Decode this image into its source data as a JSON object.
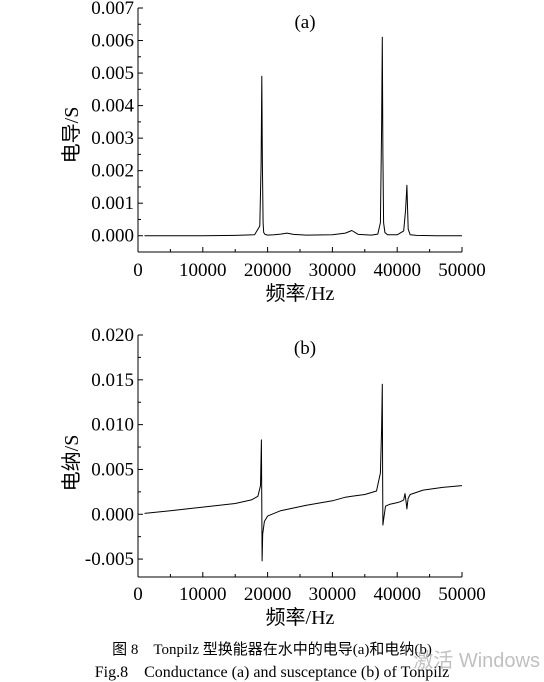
{
  "chart_data": [
    {
      "type": "line",
      "panel_label": "(a)",
      "ylabel": "电导/S",
      "xlabel": "频率/Hz",
      "xlim": [
        0,
        50000
      ],
      "ylim": [
        -0.0005,
        0.007
      ],
      "xticks": [
        "0",
        "10000",
        "20000",
        "30000",
        "40000",
        "50000"
      ],
      "yticks": [
        "0.000",
        "0.001",
        "0.002",
        "0.003",
        "0.004",
        "0.005",
        "0.006",
        "0.007"
      ],
      "series": [
        {
          "x": [
            1000,
            5000,
            10000,
            15000,
            18000,
            18800,
            19000,
            19100,
            19200,
            19300,
            19400,
            19600,
            20000,
            21000,
            22000,
            23000,
            24000,
            26000,
            30000,
            32000,
            33000,
            34000,
            36000,
            37000,
            37400,
            37600,
            37700,
            37800,
            37900,
            38100,
            38500,
            40000,
            41000,
            41300,
            41500,
            41600,
            41700,
            42000,
            43000,
            46000,
            50000
          ],
          "y": [
            0.0,
            0.0,
            0.0,
            1e-05,
            3e-05,
            0.0003,
            0.0022,
            0.0049,
            0.0022,
            0.0004,
            0.0001,
            4e-05,
            2e-05,
            3e-05,
            5e-05,
            8e-05,
            4e-05,
            2e-05,
            3e-05,
            8e-05,
            0.00016,
            4e-05,
            2e-05,
            5e-05,
            0.0004,
            0.0033,
            0.0061,
            0.0025,
            0.0004,
            0.0001,
            3e-05,
            3e-05,
            0.00015,
            0.0008,
            0.00155,
            0.0008,
            0.0002,
            3e-05,
            1e-05,
            0.0,
            0.0
          ]
        }
      ]
    },
    {
      "type": "line",
      "panel_label": "(b)",
      "ylabel": "电纳/S",
      "xlabel": "频率/Hz",
      "xlim": [
        0,
        50000
      ],
      "ylim": [
        -0.007,
        0.02
      ],
      "xticks": [
        "0",
        "10000",
        "20000",
        "30000",
        "40000",
        "50000"
      ],
      "yticks": [
        "-0.005",
        "0.000",
        "0.005",
        "0.010",
        "0.015",
        "0.020"
      ],
      "series": [
        {
          "x": [
            1000,
            5000,
            10000,
            15000,
            17500,
            18500,
            18900,
            19050,
            19100,
            19150,
            19250,
            19500,
            20000,
            22000,
            26000,
            30000,
            32000,
            33000,
            35000,
            36800,
            37400,
            37600,
            37700,
            37750,
            37800,
            37900,
            38200,
            38800,
            40000,
            40500,
            41000,
            41200,
            41400,
            41500,
            41600,
            41700,
            42000,
            44000,
            47000,
            50000
          ],
          "y": [
            0.0001,
            0.0004,
            0.0008,
            0.0012,
            0.0016,
            0.002,
            0.0032,
            0.0083,
            0.001,
            -0.0052,
            -0.0022,
            -0.0008,
            -0.0002,
            0.0004,
            0.001,
            0.0015,
            0.0019,
            0.002,
            0.0022,
            0.0026,
            0.0046,
            0.0095,
            0.0145,
            0.005,
            -0.0012,
            -0.0006,
            0.0009,
            0.0011,
            0.0013,
            0.0014,
            0.0016,
            0.0023,
            0.0012,
            0.0006,
            0.0013,
            0.0018,
            0.0022,
            0.0027,
            0.003,
            0.0032
          ]
        }
      ]
    }
  ],
  "caption": {
    "chinese": "图 8　Tonpilz 型换能器在水中的电导(a)和电纳(b)",
    "english": "Fig.8　Conductance (a) and susceptance (b) of Tonpilz"
  },
  "watermark": "激活 Windows"
}
